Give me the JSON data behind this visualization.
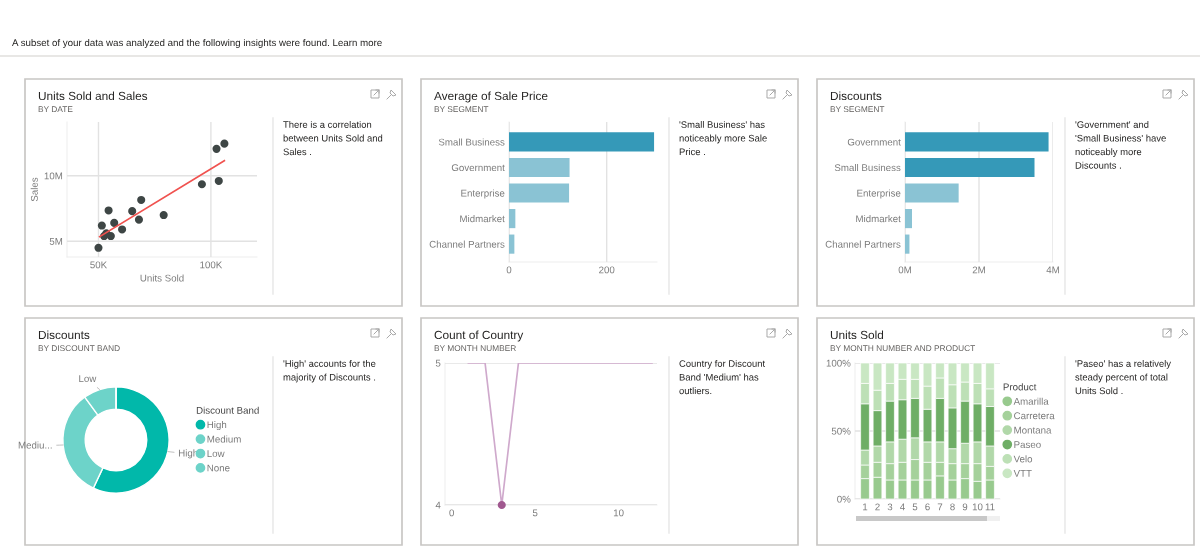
{
  "chart_data": [
    {
      "type": "scatter",
      "title": "Units Sold and Sales",
      "subtitle": "BY DATE",
      "xlabel": "Units Sold",
      "ylabel": "Sales",
      "annotations": [
        "There is a correlation\nbetween Units Sold and\nSales .",
        "A subset of your data was analyzed and the following insights were found. Learn more"
      ],
      "series": [
        {
          "type": "scatter",
          "marker": "circle",
          "color": "#3e4645",
          "x": [
            50000,
            51500,
            52500,
            53500,
            55500,
            54500,
            57000,
            60500,
            65000,
            68000,
            69000,
            79000,
            96000,
            103500,
            102500,
            106000
          ],
          "values": [
            4500000,
            6200000,
            5400000,
            5600000,
            5400000,
            7350000,
            6400000,
            5900000,
            7300000,
            6650000,
            8150000,
            7000000,
            9350000,
            9600000,
            12050000,
            12450000
          ]
        },
        {
          "type": "line",
          "color": "#f0524f",
          "x": [
            50500,
            106000
          ],
          "values": [
            5350000,
            11150000
          ]
        }
      ],
      "xlim": [
        36000,
        120500
      ],
      "ylim": [
        3800000,
        14100000
      ],
      "xticks": [
        {
          "value": 50000,
          "label": "50K"
        },
        {
          "value": 100000,
          "label": "100K"
        }
      ],
      "yticks": [
        {
          "value": 5000000,
          "label": "5M"
        },
        {
          "value": 10000000,
          "label": "10M"
        }
      ],
      "grid": true
    },
    {
      "type": "bar",
      "orientation": "horizontal",
      "title": "Average of Sale Price",
      "subtitle": "BY SEGMENT",
      "annotations": [
        "'Small Business' has\nnoticeably more Sale\nPrice ."
      ],
      "categories": [
        "Small Business",
        "Government",
        "Enterprise",
        "Midmarket",
        "Channel Partners"
      ],
      "values": [
        297,
        124,
        123,
        13,
        11
      ],
      "colors": [
        "#3599b8",
        "#8ac3d4",
        "#8ac3d4",
        "#8ac3d4",
        "#8ac3d4"
      ],
      "xlim": [
        0,
        303
      ],
      "xticks": [
        0,
        200
      ],
      "grid": "x"
    },
    {
      "type": "bar",
      "orientation": "horizontal",
      "title": "Discounts",
      "subtitle": "BY SEGMENT",
      "annotations": [
        "'Government' and\n'Small Business' have\nnoticeably more\nDiscounts ."
      ],
      "categories": [
        "Government",
        "Small Business",
        "Enterprise",
        "Midmarket",
        "Channel Partners"
      ],
      "values": [
        3880000,
        3500000,
        1450000,
        190000,
        120000
      ],
      "colors": [
        "#3599b8",
        "#3599b8",
        "#8ac3d4",
        "#8ac3d4",
        "#8ac3d4"
      ],
      "xlim": [
        0,
        4000000
      ],
      "xticks": [
        {
          "value": 0,
          "label": "0M"
        },
        {
          "value": 2000000,
          "label": "2M"
        },
        {
          "value": 4000000,
          "label": "4M"
        }
      ],
      "grid": "x"
    },
    {
      "type": "donut",
      "title": "Discounts",
      "subtitle": "BY DISCOUNT BAND",
      "annotations": [
        "'High' accounts for the\nmajority of Discounts .",
        {
          "text": "High",
          "x": "High"
        },
        {
          "text": "Mediu...",
          "x": "Medium"
        },
        {
          "text": "Low",
          "x": "Low"
        }
      ],
      "categories": [
        "High",
        "Medium",
        "Low",
        "None"
      ],
      "values": [
        57,
        33,
        10,
        0
      ],
      "colors": [
        "#01b8aa",
        "#6dd3c9",
        "#6dd3c9",
        "#6dd3c9"
      ],
      "legend_title": "Discount Band",
      "legend": "right"
    },
    {
      "type": "line",
      "title": "Count of Country",
      "subtitle": "BY MONTH NUMBER",
      "annotations": [
        "Country for Discount\nBand 'Medium' has\noutliers."
      ],
      "series": [
        {
          "type": "line",
          "color": "#cfa9cc",
          "x": [
            1,
            2,
            3,
            4,
            5,
            6,
            7,
            8,
            9,
            10,
            11,
            12
          ],
          "values": [
            5,
            5,
            4,
            5,
            5,
            5,
            5,
            5,
            5,
            5,
            5,
            5
          ]
        },
        {
          "type": "scatter",
          "marker": "circle",
          "color": "#a0588f",
          "x": [
            3
          ],
          "values": [
            4
          ]
        }
      ],
      "xlim": [
        -0.4,
        12.3
      ],
      "ylim": [
        4,
        5
      ],
      "xticks": [
        0,
        5,
        10
      ],
      "yticks": [
        4,
        5
      ],
      "grid": "y"
    },
    {
      "type": "bar",
      "stacked": true,
      "title": "Units Sold",
      "subtitle": "BY MONTH NUMBER AND PRODUCT",
      "annotations": [
        "'Paseo' has a relatively\nsteady percent of total\nUnits Sold ."
      ],
      "categories": [
        "1",
        "2",
        "3",
        "4",
        "5",
        "6",
        "7",
        "8",
        "9",
        "10",
        "11"
      ],
      "series": [
        {
          "name": "Amarilla",
          "color": "#98ca8e",
          "values": [
            15,
            16,
            14,
            14,
            14,
            14,
            17,
            14,
            15,
            13,
            14
          ]
        },
        {
          "name": "Carretera",
          "color": "#a5d19b",
          "values": [
            10,
            11,
            12,
            13,
            15,
            13,
            10,
            12,
            11,
            13,
            10
          ]
        },
        {
          "name": "Montana",
          "color": "#b1d8a9",
          "values": [
            11,
            12,
            16,
            17,
            16,
            15,
            15,
            11,
            15,
            16,
            15
          ]
        },
        {
          "name": "Paseo",
          "color": "#6fae66",
          "values": [
            34,
            26,
            30,
            29,
            29,
            24,
            32,
            30,
            31,
            28,
            29
          ]
        },
        {
          "name": "Velo",
          "color": "#bde0b6",
          "values": [
            15,
            15,
            13,
            15,
            14,
            17,
            15,
            17,
            14,
            15,
            13
          ]
        },
        {
          "name": "VTT",
          "color": "#c9e7c3",
          "values": [
            15,
            20,
            15,
            12,
            12,
            17,
            11,
            16,
            14,
            15,
            19
          ]
        }
      ],
      "ylim": [
        0,
        100
      ],
      "yticks": [
        {
          "value": 0,
          "label": "0%"
        },
        {
          "value": 50,
          "label": "50%"
        },
        {
          "value": 100,
          "label": "100%"
        }
      ],
      "grid": "y",
      "legend": "right",
      "legend_title": "Product"
    }
  ]
}
